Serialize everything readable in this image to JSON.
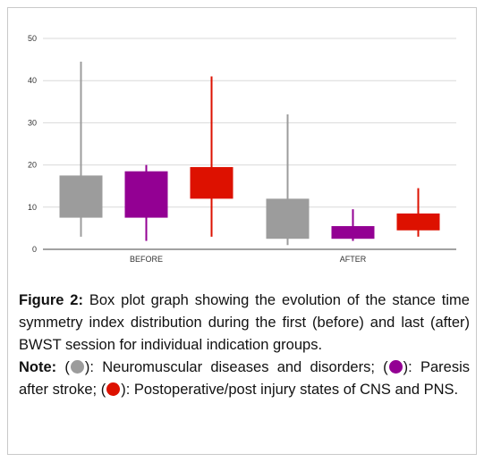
{
  "chart_data": {
    "type": "box",
    "yticks": [
      0,
      10,
      20,
      30,
      40,
      50
    ],
    "ylim": [
      0,
      50
    ],
    "categories": [
      "BEFORE",
      "AFTER"
    ],
    "grid": true,
    "groups": [
      {
        "name": "Neuromuscular diseases and disorders",
        "color": "#9c9c9c"
      },
      {
        "name": "Paresis after stroke",
        "color": "#930093"
      },
      {
        "name": "Postoperative/post injury states of CNS and PNS",
        "color": "#dd1100"
      }
    ],
    "boxes": [
      {
        "category": "BEFORE",
        "group": 0,
        "min": 3,
        "q1": 7.5,
        "q3": 17.5,
        "max": 44.5
      },
      {
        "category": "BEFORE",
        "group": 1,
        "min": 2,
        "q1": 7.5,
        "q3": 18.5,
        "max": 20
      },
      {
        "category": "BEFORE",
        "group": 2,
        "min": 3,
        "q1": 12,
        "q3": 19.5,
        "max": 41
      },
      {
        "category": "AFTER",
        "group": 0,
        "min": 1,
        "q1": 2.5,
        "q3": 12,
        "max": 32
      },
      {
        "category": "AFTER",
        "group": 1,
        "min": 2,
        "q1": 2.5,
        "q3": 5.5,
        "max": 9.5
      },
      {
        "category": "AFTER",
        "group": 2,
        "min": 3,
        "q1": 4.5,
        "q3": 8.5,
        "max": 14.5
      }
    ]
  },
  "caption": {
    "figure_label": "Figure 2:",
    "figure_text": " Box plot graph showing the evolution of the stance time symmetry index distribution during the first (before) and last (after) BWST session for individual indication groups.",
    "note_label": "Note:",
    "open_paren": " (",
    "item1": "): Neuromuscular diseases and disorders; (",
    "item2": "): Paresis after stroke; (",
    "item3": "): Postoperative/post injury states of CNS and PNS."
  }
}
